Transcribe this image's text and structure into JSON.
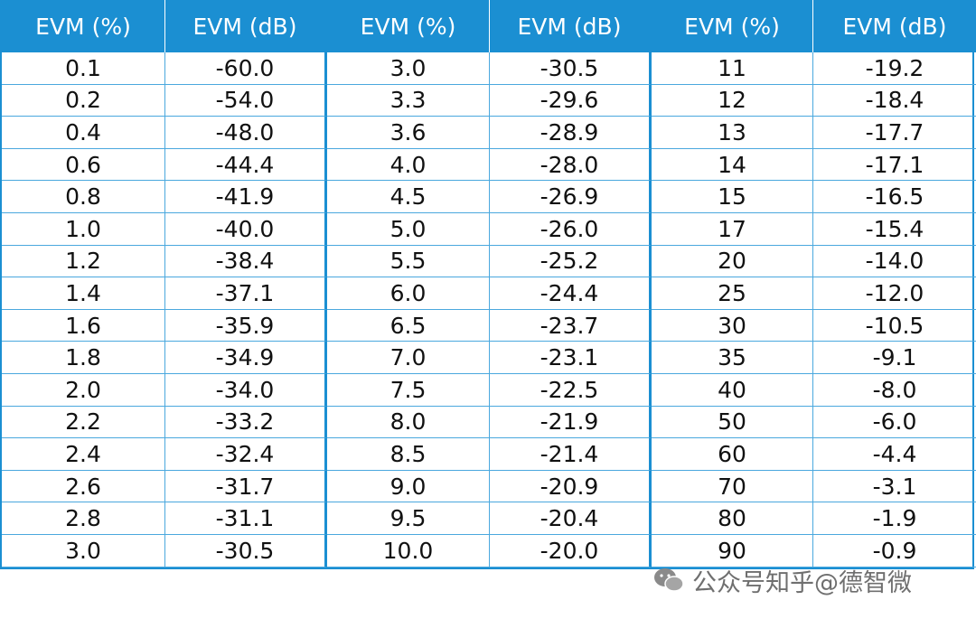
{
  "table": {
    "header": [
      "EVM (%)",
      "EVM (dB)",
      "EVM (%)",
      "EVM (dB)",
      "EVM (%)",
      "EVM (dB)"
    ],
    "rows": [
      [
        "0.1",
        "-60.0",
        "3.0",
        "-30.5",
        "11",
        "-19.2"
      ],
      [
        "0.2",
        "-54.0",
        "3.3",
        "-29.6",
        "12",
        "-18.4"
      ],
      [
        "0.4",
        "-48.0",
        "3.6",
        "-28.9",
        "13",
        "-17.7"
      ],
      [
        "0.6",
        "-44.4",
        "4.0",
        "-28.0",
        "14",
        "-17.1"
      ],
      [
        "0.8",
        "-41.9",
        "4.5",
        "-26.9",
        "15",
        "-16.5"
      ],
      [
        "1.0",
        "-40.0",
        "5.0",
        "-26.0",
        "17",
        "-15.4"
      ],
      [
        "1.2",
        "-38.4",
        "5.5",
        "-25.2",
        "20",
        "-14.0"
      ],
      [
        "1.4",
        "-37.1",
        "6.0",
        "-24.4",
        "25",
        "-12.0"
      ],
      [
        "1.6",
        "-35.9",
        "6.5",
        "-23.7",
        "30",
        "-10.5"
      ],
      [
        "1.8",
        "-34.9",
        "7.0",
        "-23.1",
        "35",
        "-9.1"
      ],
      [
        "2.0",
        "-34.0",
        "7.5",
        "-22.5",
        "40",
        "-8.0"
      ],
      [
        "2.2",
        "-33.2",
        "8.0",
        "-21.9",
        "50",
        "-6.0"
      ],
      [
        "2.4",
        "-32.4",
        "8.5",
        "-21.4",
        "60",
        "-4.4"
      ],
      [
        "2.6",
        "-31.7",
        "9.0",
        "-20.9",
        "70",
        "-3.1"
      ],
      [
        "2.8",
        "-31.1",
        "9.5",
        "-20.4",
        "80",
        "-1.9"
      ],
      [
        "3.0",
        "-30.5",
        "10.0",
        "-20.0",
        "90",
        "-0.9"
      ]
    ]
  },
  "watermark": "公众号知乎@德智微"
}
